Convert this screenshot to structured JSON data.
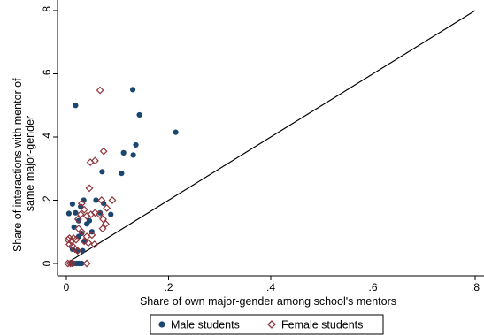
{
  "chart_data": {
    "type": "scatter",
    "xlabel": "Share of own major-gender among school's mentors",
    "ylabel_lines": [
      "Share of interactions with mentor of",
      "same major-gender"
    ],
    "xlim": [
      0,
      0.8
    ],
    "ylim": [
      0,
      0.8
    ],
    "x_ticks": [
      0,
      0.2,
      0.4,
      0.6,
      0.8
    ],
    "x_tick_labels": [
      "0",
      ".2",
      ".4",
      ".6",
      ".8"
    ],
    "y_ticks": [
      0,
      0.2,
      0.4,
      0.6,
      0.8
    ],
    "y_tick_labels": [
      "0",
      ".2",
      ".4",
      ".6",
      ".8"
    ],
    "grid": false,
    "legend_position": "bottom",
    "reference_line": {
      "from": [
        0,
        0
      ],
      "to": [
        0.8,
        0.8
      ],
      "color": "#000000"
    },
    "series": [
      {
        "name": "Male students",
        "marker": "filled-circle",
        "color": "#1a476f",
        "points": [
          [
            0.018,
            0.5
          ],
          [
            0.13,
            0.55
          ],
          [
            0.143,
            0.47
          ],
          [
            0.214,
            0.415
          ],
          [
            0.136,
            0.375
          ],
          [
            0.112,
            0.35
          ],
          [
            0.131,
            0.343
          ],
          [
            0.108,
            0.285
          ],
          [
            0.07,
            0.29
          ],
          [
            0.005,
            0.158
          ],
          [
            0.012,
            0.188
          ],
          [
            0.018,
            0.16
          ],
          [
            0.024,
            0.135
          ],
          [
            0.028,
            0.18
          ],
          [
            0.034,
            0.2
          ],
          [
            0.04,
            0.125
          ],
          [
            0.045,
            0.135
          ],
          [
            0.05,
            0.1
          ],
          [
            0.058,
            0.2
          ],
          [
            0.066,
            0.16
          ],
          [
            0.073,
            0.19
          ],
          [
            0.087,
            0.155
          ],
          [
            0.015,
            0.115
          ],
          [
            0.024,
            0.085
          ],
          [
            0.03,
            0.095
          ],
          [
            0.036,
            0.07
          ],
          [
            0.012,
            0.045
          ],
          [
            0.022,
            0.04
          ],
          [
            0.032,
            0.04
          ],
          [
            0.01,
            0.0
          ],
          [
            0.015,
            0.0
          ],
          [
            0.02,
            0.0
          ],
          [
            0.025,
            0.0
          ],
          [
            0.03,
            0.0
          ]
        ]
      },
      {
        "name": "Female students",
        "marker": "hollow-diamond",
        "color": "#90353b",
        "points": [
          [
            0.066,
            0.548
          ],
          [
            0.073,
            0.355
          ],
          [
            0.056,
            0.325
          ],
          [
            0.047,
            0.32
          ],
          [
            0.045,
            0.238
          ],
          [
            0.09,
            0.2
          ],
          [
            0.069,
            0.2
          ],
          [
            0.079,
            0.175
          ],
          [
            0.056,
            0.16
          ],
          [
            0.065,
            0.155
          ],
          [
            0.048,
            0.155
          ],
          [
            0.04,
            0.15
          ],
          [
            0.035,
            0.17
          ],
          [
            0.03,
            0.19
          ],
          [
            0.028,
            0.155
          ],
          [
            0.023,
            0.14
          ],
          [
            0.072,
            0.14
          ],
          [
            0.077,
            0.125
          ],
          [
            0.071,
            0.11
          ],
          [
            0.05,
            0.09
          ],
          [
            0.04,
            0.085
          ],
          [
            0.035,
            0.07
          ],
          [
            0.043,
            0.065
          ],
          [
            0.055,
            0.06
          ],
          [
            0.003,
            0.075
          ],
          [
            0.006,
            0.08
          ],
          [
            0.01,
            0.07
          ],
          [
            0.014,
            0.08
          ],
          [
            0.019,
            0.075
          ],
          [
            0.006,
            0.06
          ],
          [
            0.012,
            0.055
          ],
          [
            0.017,
            0.045
          ],
          [
            0.022,
            0.04
          ],
          [
            0.03,
            0.1
          ],
          [
            0.024,
            0.11
          ],
          [
            0.003,
            0.0
          ],
          [
            0.008,
            0.0
          ],
          [
            0.012,
            0.0
          ],
          [
            0.04,
            0.0
          ]
        ]
      }
    ]
  }
}
